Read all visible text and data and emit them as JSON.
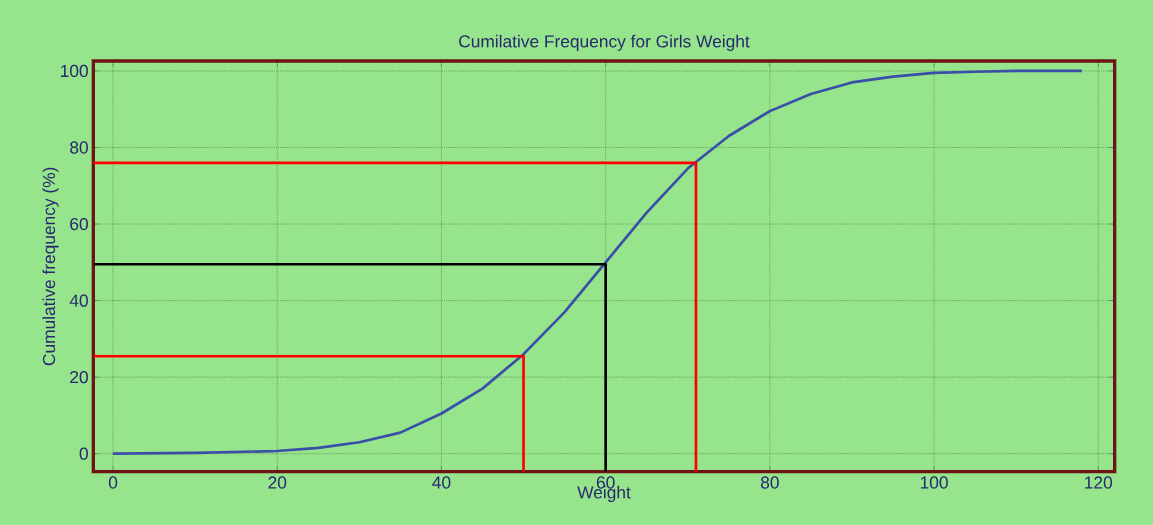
{
  "chart_data": {
    "type": "line",
    "title": "Cumilative Frequency for Girls Weight",
    "xlabel": "Weight",
    "ylabel": "Cumulative frequency (%)",
    "xlim": [
      -2.4,
      122
    ],
    "ylim": [
      -4.7,
      102.6
    ],
    "xticks": [
      0,
      20,
      40,
      60,
      80,
      100,
      120
    ],
    "yticks": [
      0,
      20,
      40,
      60,
      80,
      100
    ],
    "grid": true,
    "marker": "none",
    "line_style": "solid",
    "series": [
      {
        "color": "#3a4fa8",
        "x": [
          0,
          10,
          20,
          25,
          30,
          35,
          40,
          45,
          50,
          55,
          60,
          65,
          70,
          75,
          80,
          85,
          90,
          95,
          100,
          105,
          110,
          118
        ],
        "values": [
          0,
          0.2,
          0.7,
          1.5,
          3,
          5.5,
          10.5,
          17,
          26,
          37,
          50,
          63,
          74.5,
          83,
          89.5,
          94,
          97,
          98.5,
          99.5,
          99.8,
          100,
          100
        ]
      },
      {
        "color": "#ff0000",
        "x": [
          -2.4,
          50,
          50
        ],
        "values": [
          25.5,
          25.5,
          -4.7
        ]
      },
      {
        "color": "#000000",
        "x": [
          -2.4,
          60,
          60
        ],
        "values": [
          49.5,
          49.5,
          -4.7
        ]
      },
      {
        "color": "#ff0000",
        "x": [
          -2.4,
          71,
          71
        ],
        "values": [
          76,
          76,
          -4.7
        ]
      }
    ]
  }
}
